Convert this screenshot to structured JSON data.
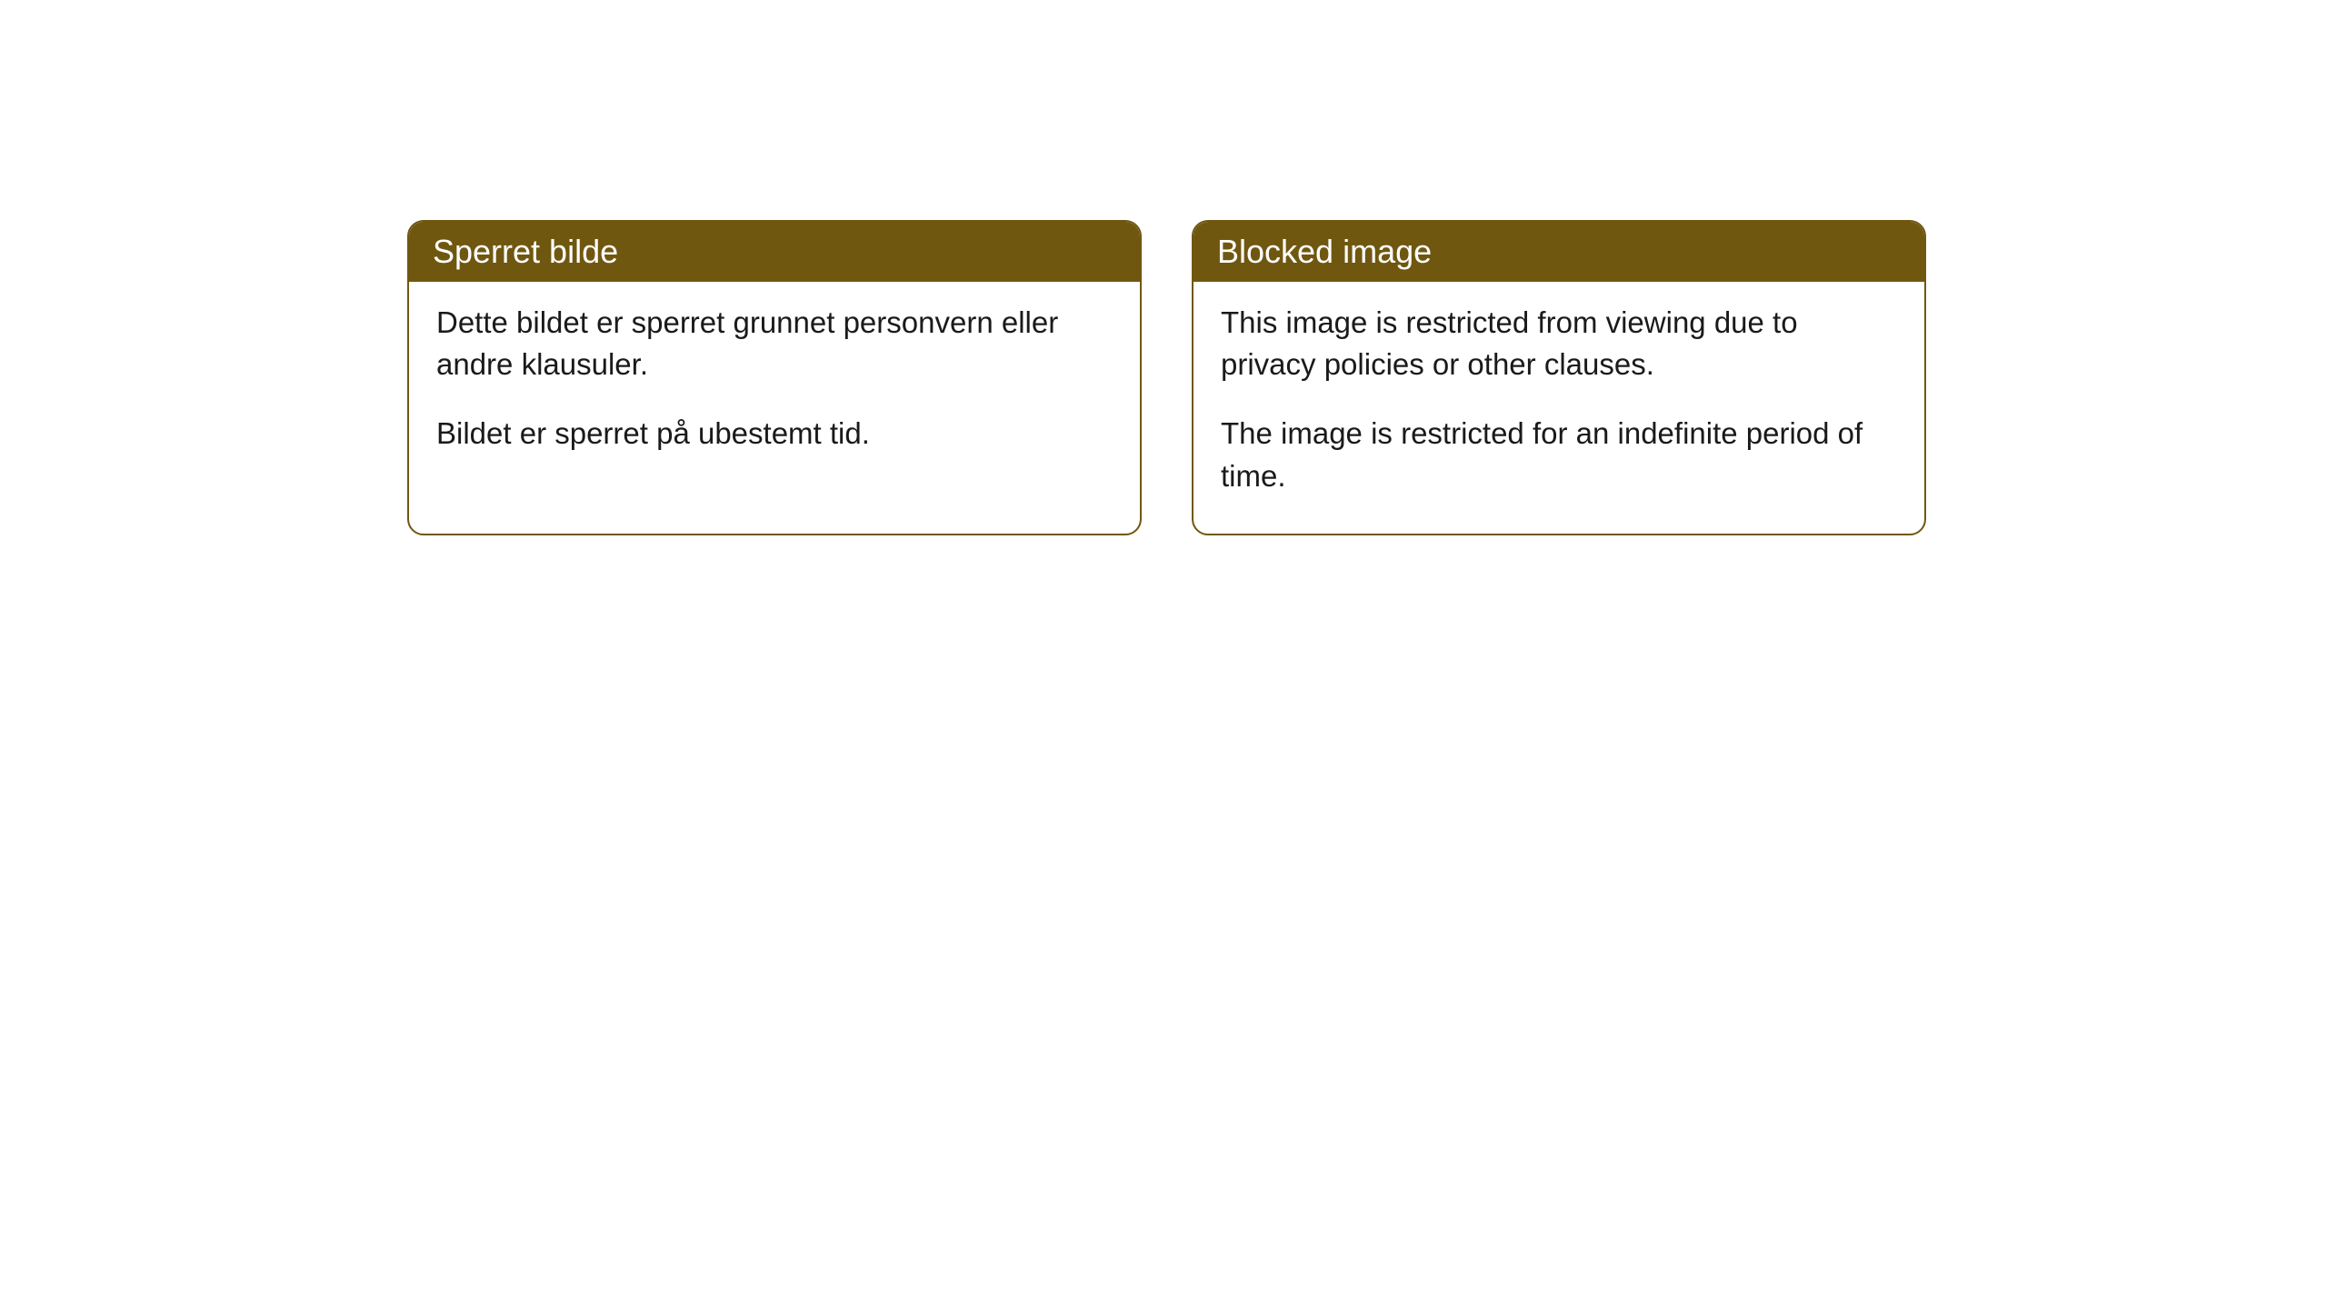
{
  "cards": [
    {
      "title": "Sperret bilde",
      "paragraph1": "Dette bildet er sperret grunnet personvern eller andre klausuler.",
      "paragraph2": "Bildet er sperret på ubestemt tid."
    },
    {
      "title": "Blocked image",
      "paragraph1": "This image is restricted from viewing due to privacy policies or other clauses.",
      "paragraph2": "The image is restricted for an indefinite period of time."
    }
  ],
  "styling": {
    "header_background": "#705710",
    "header_text_color": "#ffffff",
    "border_color": "#705710",
    "body_background": "#ffffff",
    "body_text_color": "#1a1a1a",
    "border_radius": 18,
    "header_fontsize": 36,
    "body_fontsize": 33
  }
}
